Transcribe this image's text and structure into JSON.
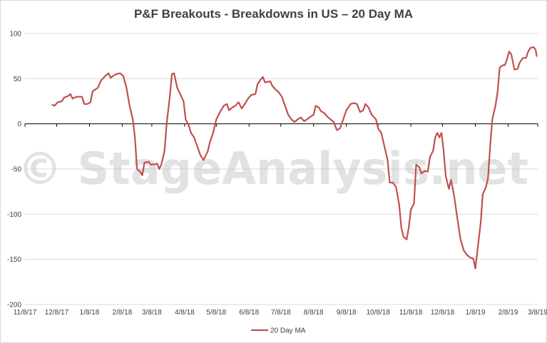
{
  "chart_data": {
    "type": "line",
    "title": "P&F Breakouts - Breakdowns in US – 20 Day MA",
    "xlabel": "",
    "ylabel": "",
    "ylim": [
      -200,
      100
    ],
    "y_ticks": [
      100,
      50,
      0,
      -50,
      -100,
      -150,
      -200
    ],
    "x_ticks": [
      "11/8/17",
      "12/8/17",
      "1/8/18",
      "2/8/18",
      "3/8/18",
      "4/8/18",
      "5/8/18",
      "6/8/18",
      "7/8/18",
      "8/8/18",
      "9/8/18",
      "10/8/18",
      "11/8/18",
      "12/8/18",
      "1/8/19",
      "2/8/19",
      "3/8/19"
    ],
    "grid": "horizontal",
    "legend_position": "bottom",
    "watermark": "© StageAnalysis.net",
    "series": [
      {
        "name": "20 Day MA",
        "color": "#c0504d",
        "points": [
          [
            "2017-12-04",
            21
          ],
          [
            "2017-12-06",
            20
          ],
          [
            "2017-12-09",
            24
          ],
          [
            "2017-12-13",
            25
          ],
          [
            "2017-12-15",
            29
          ],
          [
            "2017-12-19",
            31
          ],
          [
            "2017-12-21",
            33
          ],
          [
            "2017-12-23",
            28
          ],
          [
            "2017-12-27",
            30
          ],
          [
            "2018-01-01",
            30
          ],
          [
            "2018-01-03",
            22
          ],
          [
            "2018-01-06",
            22
          ],
          [
            "2018-01-09",
            24
          ],
          [
            "2018-01-11",
            36
          ],
          [
            "2018-01-16",
            40
          ],
          [
            "2018-01-19",
            48
          ],
          [
            "2018-01-23",
            53
          ],
          [
            "2018-01-26",
            56
          ],
          [
            "2018-01-28",
            51
          ],
          [
            "2018-02-02",
            55
          ],
          [
            "2018-02-06",
            56
          ],
          [
            "2018-02-09",
            53
          ],
          [
            "2018-02-12",
            40
          ],
          [
            "2018-02-15",
            20
          ],
          [
            "2018-02-18",
            5
          ],
          [
            "2018-02-20",
            -15
          ],
          [
            "2018-02-22",
            -50
          ],
          [
            "2018-02-25",
            -53
          ],
          [
            "2018-02-27",
            -57
          ],
          [
            "2018-03-01",
            -43
          ],
          [
            "2018-03-05",
            -42
          ],
          [
            "2018-03-07",
            -45
          ],
          [
            "2018-03-10",
            -45
          ],
          [
            "2018-03-13",
            -44
          ],
          [
            "2018-03-15",
            -50
          ],
          [
            "2018-03-17",
            -45
          ],
          [
            "2018-03-20",
            -30
          ],
          [
            "2018-03-22",
            0
          ],
          [
            "2018-03-25",
            30
          ],
          [
            "2018-03-27",
            55
          ],
          [
            "2018-03-29",
            56
          ],
          [
            "2018-04-01",
            40
          ],
          [
            "2018-04-05",
            30
          ],
          [
            "2018-04-07",
            25
          ],
          [
            "2018-04-09",
            5
          ],
          [
            "2018-04-12",
            -2
          ],
          [
            "2018-04-14",
            -10
          ],
          [
            "2018-04-17",
            -15
          ],
          [
            "2018-04-20",
            -25
          ],
          [
            "2018-04-23",
            -35
          ],
          [
            "2018-04-26",
            -40
          ],
          [
            "2018-04-30",
            -30
          ],
          [
            "2018-05-02",
            -20
          ],
          [
            "2018-05-05",
            -10
          ],
          [
            "2018-05-08",
            5
          ],
          [
            "2018-05-11",
            12
          ],
          [
            "2018-05-15",
            20
          ],
          [
            "2018-05-18",
            22
          ],
          [
            "2018-05-20",
            15
          ],
          [
            "2018-05-23",
            18
          ],
          [
            "2018-05-26",
            20
          ],
          [
            "2018-05-29",
            24
          ],
          [
            "2018-06-01",
            17
          ],
          [
            "2018-06-04",
            22
          ],
          [
            "2018-06-07",
            28
          ],
          [
            "2018-06-10",
            32
          ],
          [
            "2018-06-14",
            33
          ],
          [
            "2018-06-16",
            44
          ],
          [
            "2018-06-19",
            49
          ],
          [
            "2018-06-21",
            52
          ],
          [
            "2018-06-23",
            46
          ],
          [
            "2018-06-28",
            47
          ],
          [
            "2018-06-30",
            42
          ],
          [
            "2018-07-03",
            38
          ],
          [
            "2018-07-06",
            35
          ],
          [
            "2018-07-09",
            30
          ],
          [
            "2018-07-12",
            20
          ],
          [
            "2018-07-15",
            10
          ],
          [
            "2018-07-18",
            5
          ],
          [
            "2018-07-21",
            2
          ],
          [
            "2018-07-24",
            5
          ],
          [
            "2018-07-27",
            7
          ],
          [
            "2018-07-30",
            3
          ],
          [
            "2018-08-02",
            5
          ],
          [
            "2018-08-05",
            8
          ],
          [
            "2018-08-08",
            10
          ],
          [
            "2018-08-10",
            20
          ],
          [
            "2018-08-13",
            18
          ],
          [
            "2018-08-15",
            14
          ],
          [
            "2018-08-18",
            12
          ],
          [
            "2018-08-21",
            8
          ],
          [
            "2018-08-24",
            5
          ],
          [
            "2018-08-27",
            2
          ],
          [
            "2018-08-30",
            -7
          ],
          [
            "2018-09-02",
            -5
          ],
          [
            "2018-09-05",
            5
          ],
          [
            "2018-09-08",
            15
          ],
          [
            "2018-09-12",
            22
          ],
          [
            "2018-09-15",
            23
          ],
          [
            "2018-09-18",
            22
          ],
          [
            "2018-09-21",
            13
          ],
          [
            "2018-09-24",
            15
          ],
          [
            "2018-09-26",
            22
          ],
          [
            "2018-09-29",
            18
          ],
          [
            "2018-10-02",
            10
          ],
          [
            "2018-10-06",
            5
          ],
          [
            "2018-10-08",
            -5
          ],
          [
            "2018-10-11",
            -10
          ],
          [
            "2018-10-14",
            -25
          ],
          [
            "2018-10-17",
            -40
          ],
          [
            "2018-10-19",
            -65
          ],
          [
            "2018-10-22",
            -65
          ],
          [
            "2018-10-25",
            -70
          ],
          [
            "2018-10-28",
            -90
          ],
          [
            "2018-10-30",
            -115
          ],
          [
            "2018-11-01",
            -125
          ],
          [
            "2018-11-04",
            -128
          ],
          [
            "2018-11-06",
            -115
          ],
          [
            "2018-11-08",
            -95
          ],
          [
            "2018-11-11",
            -88
          ],
          [
            "2018-11-13",
            -45
          ],
          [
            "2018-11-16",
            -48
          ],
          [
            "2018-11-18",
            -55
          ],
          [
            "2018-11-21",
            -52
          ],
          [
            "2018-11-24",
            -53
          ],
          [
            "2018-11-26",
            -37
          ],
          [
            "2018-11-29",
            -30
          ],
          [
            "2018-12-01",
            -15
          ],
          [
            "2018-12-03",
            -10
          ],
          [
            "2018-12-05",
            -15
          ],
          [
            "2018-12-07",
            -10
          ],
          [
            "2018-12-09",
            -30
          ],
          [
            "2018-12-11",
            -58
          ],
          [
            "2018-12-14",
            -72
          ],
          [
            "2018-12-16",
            -62
          ],
          [
            "2018-12-19",
            -80
          ],
          [
            "2018-12-22",
            -105
          ],
          [
            "2018-12-25",
            -128
          ],
          [
            "2018-12-28",
            -140
          ],
          [
            "2018-12-31",
            -145
          ],
          [
            "2019-01-03",
            -148
          ],
          [
            "2019-01-06",
            -149
          ],
          [
            "2019-01-08",
            -160
          ],
          [
            "2019-01-10",
            -140
          ],
          [
            "2019-01-13",
            -110
          ],
          [
            "2019-01-15",
            -78
          ],
          [
            "2019-01-18",
            -70
          ],
          [
            "2019-01-20",
            -60
          ],
          [
            "2019-01-22",
            -25
          ],
          [
            "2019-01-24",
            5
          ],
          [
            "2019-01-27",
            20
          ],
          [
            "2019-01-29",
            35
          ],
          [
            "2019-01-31",
            62
          ],
          [
            "2019-02-03",
            65
          ],
          [
            "2019-02-05",
            65
          ],
          [
            "2019-02-07",
            72
          ],
          [
            "2019-02-09",
            80
          ],
          [
            "2019-02-11",
            77
          ],
          [
            "2019-02-14",
            60
          ],
          [
            "2019-02-17",
            61
          ],
          [
            "2019-02-19",
            68
          ],
          [
            "2019-02-22",
            73
          ],
          [
            "2019-02-25",
            73
          ],
          [
            "2019-02-27",
            80
          ],
          [
            "2019-03-01",
            84
          ],
          [
            "2019-03-04",
            85
          ],
          [
            "2019-03-06",
            82
          ],
          [
            "2019-03-07",
            75
          ]
        ]
      }
    ]
  }
}
